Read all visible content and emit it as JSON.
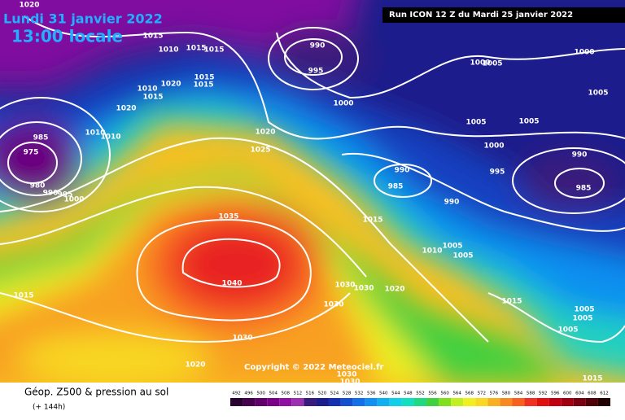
{
  "header": {
    "date": "Lundi 31 janvier 2022",
    "time": "13:00 locale",
    "run": "Run ICON 12 Z du Mardi 25 janvier 2022"
  },
  "copyright": "Copyright © 2022 Meteociel.fr",
  "footer": {
    "title": "Géop. Z500 & pression au sol",
    "lead": "(+ 144h)"
  },
  "scale": {
    "labels": [
      492,
      496,
      500,
      504,
      508,
      512,
      516,
      520,
      524,
      528,
      532,
      536,
      540,
      544,
      548,
      552,
      556,
      560,
      564,
      568,
      572,
      576,
      580,
      584,
      588,
      592,
      596,
      600,
      604,
      608,
      612
    ],
    "colors": [
      "#2a0030",
      "#46004e",
      "#60006a",
      "#7a0088",
      "#8e10a0",
      "#9a30b0",
      "#3a1a7a",
      "#1c1c8c",
      "#1430b0",
      "#1450d0",
      "#1470e8",
      "#1090f0",
      "#10b0f0",
      "#10d0e8",
      "#10e0c0",
      "#20d880",
      "#40d040",
      "#80e020",
      "#c0f020",
      "#f0f020",
      "#f8d820",
      "#f8b020",
      "#f88820",
      "#f86020",
      "#f03020",
      "#e01010",
      "#c00010",
      "#a00010",
      "#780010",
      "#500008",
      "#200000"
    ]
  },
  "isobar_labels": [
    1020,
    1015,
    1010,
    1015,
    1015,
    1020,
    1015,
    1015,
    1010,
    1015,
    1020,
    1010,
    1010,
    985,
    975,
    980,
    990,
    995,
    1000,
    1020,
    1025,
    1035,
    1040,
    1030,
    1030,
    1020,
    1030,
    1030,
    1020,
    1015,
    990,
    995,
    1000,
    1000,
    1005,
    1000,
    1005,
    1005,
    1005,
    1000,
    990,
    995,
    985,
    990,
    985,
    990,
    1015,
    1010,
    1005,
    1005,
    1015,
    1005,
    1005,
    1005,
    1015,
    1030,
    1030
  ]
}
